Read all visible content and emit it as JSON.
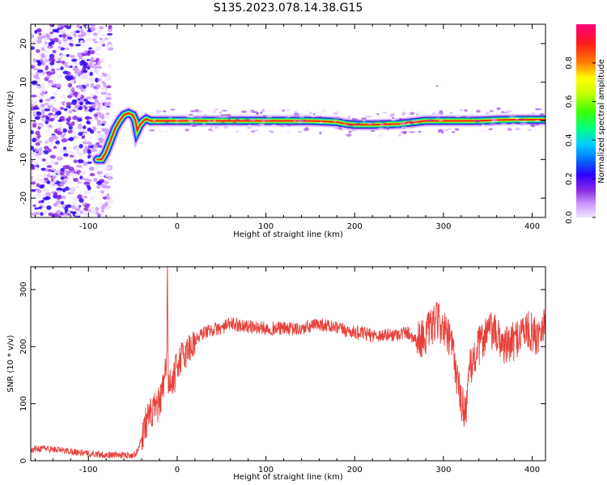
{
  "title": "S135.2023.078.14.38.G15",
  "colors": {
    "snr_line": "#e8403a",
    "colormap": [
      "#f0e6ff",
      "#cc99ff",
      "#8a2be2",
      "#2f00ff",
      "#0070ff",
      "#00d0ff",
      "#00ff80",
      "#a0ff00",
      "#ffff00",
      "#ff8000",
      "#ff1a1a",
      "#ff007a"
    ]
  },
  "chart_data": [
    {
      "type": "heatmap",
      "name": "spectrogram",
      "xlabel": "Height of straight line (km)",
      "ylabel": "Frequency (Hz)",
      "xlim": [
        -165,
        415
      ],
      "ylim": [
        -25,
        25
      ],
      "xticks": [
        -100,
        0,
        100,
        200,
        300,
        400
      ],
      "yticks": [
        -20,
        -10,
        0,
        10,
        20
      ],
      "colorbar": {
        "label": "Normalized spectral amplitude",
        "range": [
          0.0,
          1.0
        ],
        "ticks": [
          0.0,
          0.2,
          0.4,
          0.6,
          0.8
        ]
      },
      "ridge": {
        "x": [
          -90,
          -85,
          -80,
          -75,
          -70,
          -65,
          -60,
          -55,
          -50,
          -47,
          -45,
          -42,
          -38,
          -35,
          -30,
          -20,
          0,
          50,
          100,
          150,
          180,
          190,
          200,
          220,
          250,
          260,
          280,
          300,
          340,
          360,
          380,
          400,
          415
        ],
        "frequency": [
          -10,
          -10,
          -8,
          -5,
          -2,
          0,
          1.5,
          2,
          1.5,
          0,
          -2.5,
          -1,
          0,
          0.5,
          0,
          0,
          0,
          0,
          0,
          0,
          -0.3,
          -0.8,
          -1,
          -1,
          -0.8,
          -0.5,
          0,
          0,
          0,
          0.2,
          0.3,
          0.3,
          0.3
        ]
      },
      "noise_region_x": [
        -165,
        -80
      ]
    },
    {
      "type": "line",
      "name": "snr",
      "xlabel": "Height of straight line (km)",
      "ylabel": "SNR (10 * v/v)",
      "xlim": [
        -165,
        415
      ],
      "ylim": [
        0,
        340
      ],
      "xticks": [
        -100,
        0,
        100,
        200,
        300,
        400
      ],
      "yticks": [
        0,
        100,
        200,
        300
      ],
      "series": [
        {
          "x": [
            -165,
            -150,
            -130,
            -110,
            -100,
            -90,
            -80,
            -70,
            -60,
            -50,
            -45,
            -40,
            -35,
            -30,
            -25,
            -20,
            -15,
            -12,
            -11,
            -10,
            -5,
            0,
            10,
            20,
            30,
            40,
            50,
            60,
            70,
            80,
            100,
            120,
            140,
            150,
            160,
            180,
            200,
            220,
            240,
            260,
            270,
            280,
            290,
            295,
            300,
            310,
            315,
            320,
            325,
            330,
            340,
            350,
            360,
            370,
            380,
            390,
            400,
            405,
            410,
            415
          ],
          "values": [
            20,
            22,
            18,
            15,
            12,
            12,
            10,
            10,
            10,
            10,
            15,
            40,
            70,
            80,
            90,
            100,
            130,
            170,
            330,
            140,
            130,
            170,
            190,
            210,
            225,
            230,
            232,
            240,
            238,
            235,
            232,
            232,
            230,
            235,
            240,
            232,
            225,
            220,
            220,
            225,
            210,
            220,
            240,
            245,
            230,
            200,
            150,
            100,
            90,
            160,
            200,
            230,
            220,
            200,
            210,
            230,
            225,
            215,
            240,
            240
          ]
        }
      ]
    }
  ]
}
